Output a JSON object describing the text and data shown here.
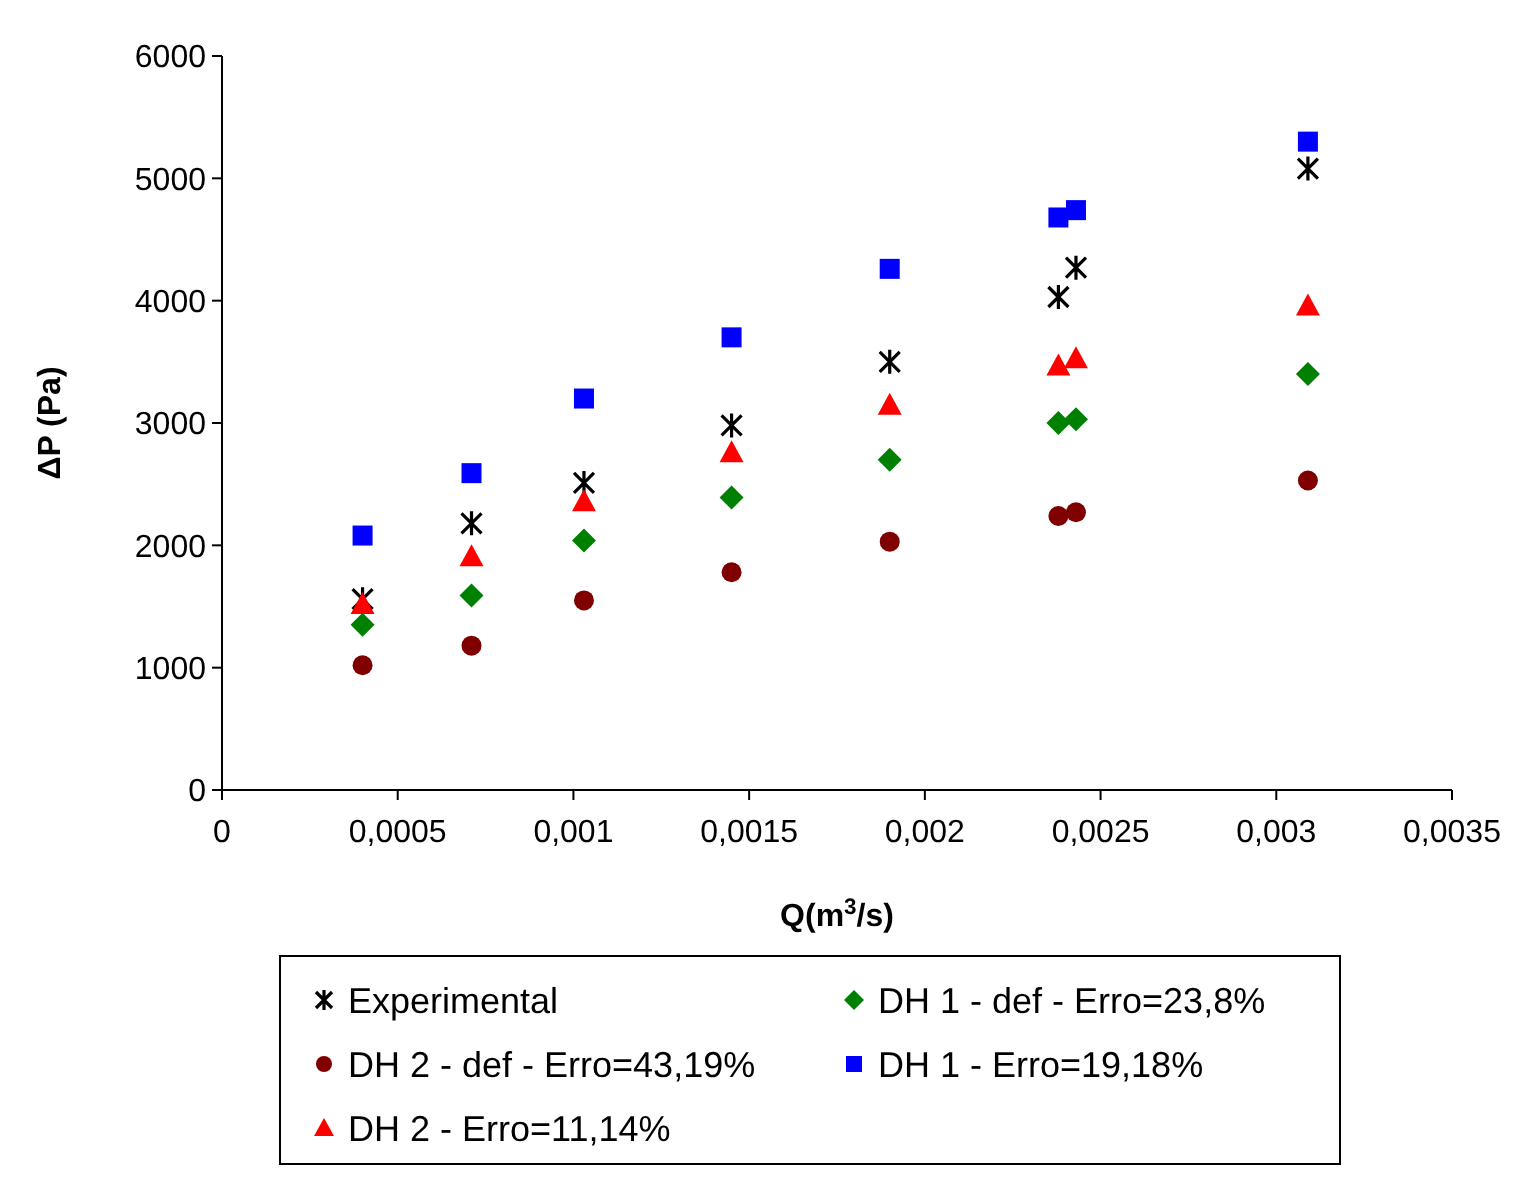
{
  "chart_data": {
    "type": "scatter",
    "xlabel": "Q(m$^{3}$/s)",
    "ylabel": "ΔP (Pa)",
    "x": [
      0.0004,
      0.00071,
      0.00103,
      0.00145,
      0.0019,
      0.00238,
      0.00243,
      0.00309
    ],
    "series": [
      {
        "name": "Experimental",
        "color": "#000000",
        "marker": "cross",
        "values": [
          1560,
          2180,
          2510,
          2980,
          3500,
          4030,
          4270,
          5080
        ]
      },
      {
        "name": "DH 1 - def - Erro=23,8%",
        "color": "#008000",
        "marker": "diamond",
        "values": [
          1350,
          1590,
          2040,
          2390,
          2700,
          3000,
          3030,
          3400
        ]
      },
      {
        "name": "DH 2 - def - Erro=43,19%",
        "color": "#800000",
        "marker": "circle",
        "values": [
          1020,
          1180,
          1550,
          1780,
          2030,
          2240,
          2270,
          2530
        ]
      },
      {
        "name": "DH 1 - Erro=19,18%",
        "color": "#0000ff",
        "marker": "square",
        "values": [
          2080,
          2590,
          3200,
          3700,
          4260,
          4680,
          4740,
          5300
        ]
      },
      {
        "name": "DH 2 - Erro=11,14%",
        "color": "#ff0000",
        "marker": "triangle",
        "values": [
          1520,
          1910,
          2360,
          2760,
          3150,
          3470,
          3530,
          3960
        ]
      }
    ],
    "xlim": [
      0,
      0.0035
    ],
    "xticks": [
      {
        "value": 0,
        "label": "0"
      },
      {
        "value": 0.0005,
        "label": "0,0005"
      },
      {
        "value": 0.001,
        "label": "0,001"
      },
      {
        "value": 0.0015,
        "label": "0,0015"
      },
      {
        "value": 0.002,
        "label": "0,002"
      },
      {
        "value": 0.0025,
        "label": "0,0025"
      },
      {
        "value": 0.003,
        "label": "0,003"
      },
      {
        "value": 0.0035,
        "label": "0,0035"
      }
    ],
    "ylim": [
      0,
      6000
    ],
    "yticks": [
      0,
      1000,
      2000,
      3000,
      4000,
      5000,
      6000
    ],
    "grid": false,
    "legend": "bottom"
  }
}
